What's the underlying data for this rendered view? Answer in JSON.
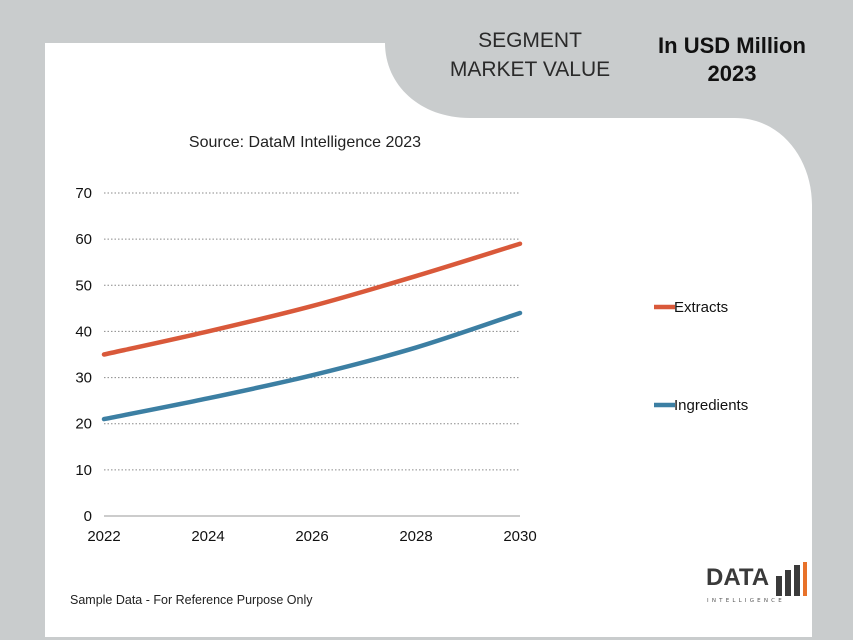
{
  "header": {
    "title_line1": "SEGMENT",
    "title_line2": "MARKET VALUE",
    "unit_line1": "In USD Million",
    "unit_line2": "2023"
  },
  "source": "Source: DataM Intelligence 2023",
  "footnote": "Sample Data - For Reference Purpose Only",
  "logo": {
    "main": "DATA",
    "sub": "INTELLIGENCE"
  },
  "colors": {
    "background": "#c9cccd",
    "panel": "#ffffff",
    "extracts": "#d9593a",
    "ingredients": "#3c7fa3",
    "logo_orange": "#e8722a"
  },
  "chart_data": {
    "type": "line",
    "x": [
      2022,
      2024,
      2026,
      2028,
      2030
    ],
    "x_ticks": [
      "2022",
      "2024",
      "2026",
      "2028",
      "2030"
    ],
    "y_ticks": [
      "0",
      "10",
      "20",
      "30",
      "40",
      "50",
      "60",
      "70"
    ],
    "ylim": [
      0,
      70
    ],
    "xlim": [
      2022,
      2030
    ],
    "grid": "horizontal dotted",
    "legend_position": "right",
    "series": [
      {
        "name": "Extracts",
        "values": [
          35,
          40,
          45.5,
          52,
          59
        ]
      },
      {
        "name": "Ingredients",
        "values": [
          21,
          25.5,
          30.5,
          36.5,
          44
        ]
      }
    ]
  }
}
